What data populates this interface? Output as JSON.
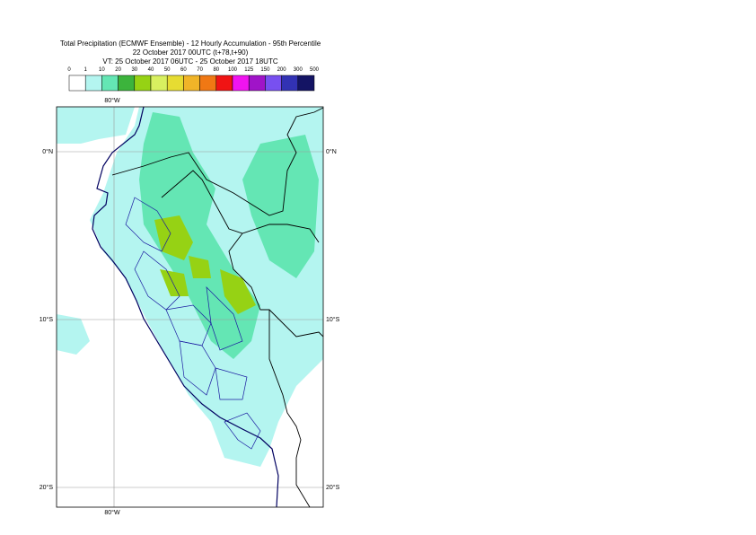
{
  "header": {
    "lines": [
      "Total Precipitation (ECMWF Ensemble) - 12 Hourly Accumulation - 95th Percentile",
      "22 October 2017 00UTC (t+78,t+90)",
      "VT: 25 October 2017 06UTC - 25 October 2017 18UTC"
    ]
  },
  "legend": {
    "labels": [
      "0",
      "1",
      "10",
      "20",
      "30",
      "40",
      "50",
      "60",
      "70",
      "80",
      "100",
      "125",
      "150",
      "200",
      "300",
      "500"
    ],
    "colors": [
      "#ffffff",
      "#b4f5f0",
      "#64e6b4",
      "#3cb43c",
      "#96d214",
      "#d8f060",
      "#e6dc32",
      "#f0b428",
      "#f07814",
      "#f01414",
      "#f014f0",
      "#a014c8",
      "#7850f0",
      "#3232b4",
      "#141464"
    ]
  },
  "map": {
    "top_lon_label": "80°W",
    "bottom_lon_label": "80°W",
    "lat_labels": [
      "0°N",
      "10°S",
      "20°S"
    ]
  }
}
